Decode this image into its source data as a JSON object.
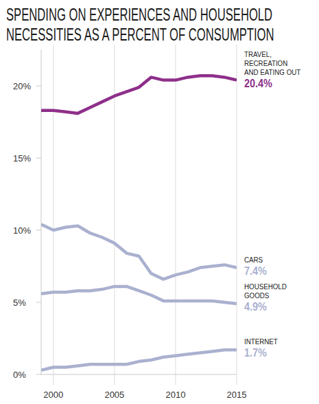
{
  "chart_data": {
    "type": "line",
    "title": "SPENDING ON EXPERIENCES AND HOUSEHOLD NECESSITIES AS A PERCENT OF CONSUMPTION",
    "x": [
      1999,
      2000,
      2001,
      2002,
      2003,
      2004,
      2005,
      2006,
      2007,
      2008,
      2009,
      2010,
      2011,
      2012,
      2013,
      2014,
      2015
    ],
    "xlim": [
      1999,
      2015
    ],
    "xticks": [
      2000,
      2005,
      2010,
      2015
    ],
    "ylim": [
      0,
      22.5
    ],
    "yticks": [
      {
        "value": 0,
        "label": "0%"
      },
      {
        "value": 5,
        "label": "5%"
      },
      {
        "value": 10,
        "label": "10%"
      },
      {
        "value": 15,
        "label": "15%"
      },
      {
        "value": 20,
        "label": "20%"
      }
    ],
    "grid": true,
    "data_labels": true,
    "series": [
      {
        "name": "TRAVEL, RECREATION AND EATING OUT",
        "color": "#8e2f8a",
        "values": [
          18.3,
          18.3,
          18.2,
          18.1,
          18.5,
          18.9,
          19.3,
          19.6,
          19.9,
          20.6,
          20.4,
          20.4,
          20.6,
          20.7,
          20.7,
          20.6,
          20.4
        ],
        "value_labels": [
          null,
          null,
          null,
          null,
          null,
          null,
          null,
          null,
          null,
          null,
          null,
          null,
          null,
          null,
          null,
          null,
          "20.4%"
        ]
      },
      {
        "name": "CARS",
        "color": "#aab1cf",
        "values": [
          10.4,
          10.0,
          10.2,
          10.3,
          9.8,
          9.5,
          9.1,
          8.4,
          8.2,
          7.0,
          6.6,
          6.9,
          7.1,
          7.4,
          7.5,
          7.6,
          7.4
        ],
        "value_labels": [
          null,
          null,
          null,
          null,
          null,
          null,
          null,
          null,
          null,
          null,
          null,
          null,
          null,
          null,
          null,
          null,
          "7.4%"
        ]
      },
      {
        "name": "HOUSEHOLD GOODS",
        "color": "#aab1cf",
        "values": [
          5.6,
          5.7,
          5.7,
          5.8,
          5.8,
          5.9,
          6.1,
          6.1,
          5.8,
          5.5,
          5.1,
          5.1,
          5.1,
          5.1,
          5.1,
          5.0,
          4.9
        ],
        "value_labels": [
          null,
          null,
          null,
          null,
          null,
          null,
          null,
          null,
          null,
          null,
          null,
          null,
          null,
          null,
          null,
          null,
          "4.9%"
        ]
      },
      {
        "name": "INTERNET",
        "color": "#aab1cf",
        "values": [
          0.3,
          0.5,
          0.5,
          0.6,
          0.7,
          0.7,
          0.7,
          0.7,
          0.9,
          1.0,
          1.2,
          1.3,
          1.4,
          1.5,
          1.6,
          1.7,
          1.7
        ],
        "value_labels": [
          null,
          null,
          null,
          null,
          null,
          null,
          null,
          null,
          null,
          null,
          null,
          null,
          null,
          null,
          null,
          null,
          "1.7%"
        ]
      }
    ]
  }
}
